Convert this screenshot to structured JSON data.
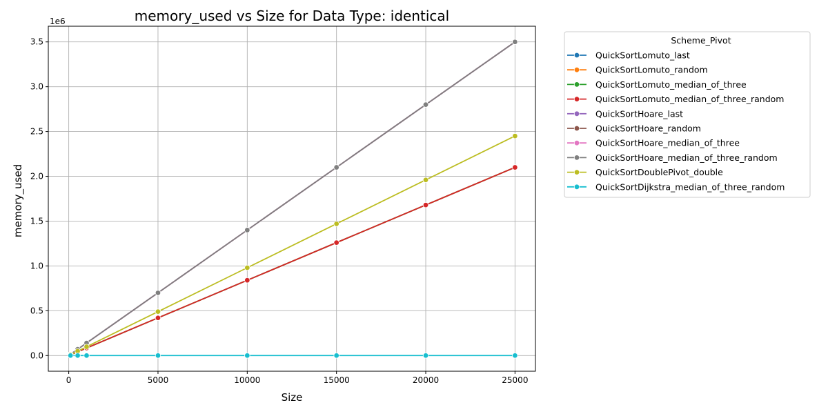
{
  "chart_data": {
    "type": "line",
    "title": "memory_used vs Size for Data Type: identical",
    "xlabel": "Size",
    "ylabel": "memory_used",
    "y_offset_label": "1e6",
    "y_scale_factor": 1000000,
    "xlim": [
      -1145,
      26145
    ],
    "ylim": [
      -175000,
      3675000
    ],
    "x_ticks": [
      0,
      5000,
      10000,
      15000,
      20000,
      25000
    ],
    "x_tick_labels": [
      "0",
      "5000",
      "10000",
      "15000",
      "20000",
      "25000"
    ],
    "y_ticks": [
      0,
      500000,
      1000000,
      1500000,
      2000000,
      2500000,
      3000000,
      3500000
    ],
    "y_tick_labels": [
      "0.0",
      "0.5",
      "1.0",
      "1.5",
      "2.0",
      "2.5",
      "3.0",
      "3.5"
    ],
    "grid": true,
    "legend_title": "Scheme_Pivot",
    "legend_position": "outside right, top",
    "x": [
      100,
      500,
      1000,
      5000,
      10000,
      15000,
      20000,
      25000
    ],
    "series": [
      {
        "name": "QuickSortLomuto_last",
        "color": "#1f77b4",
        "values": [
          8400,
          42000,
          84000,
          420000,
          840000,
          1260000,
          1680000,
          2100000
        ]
      },
      {
        "name": "QuickSortLomuto_random",
        "color": "#ff7f0e",
        "values": [
          8400,
          42000,
          84000,
          420000,
          840000,
          1260000,
          1680000,
          2100000
        ]
      },
      {
        "name": "QuickSortLomuto_median_of_three",
        "color": "#2ca02c",
        "values": [
          8400,
          42000,
          84000,
          420000,
          840000,
          1260000,
          1680000,
          2100000
        ]
      },
      {
        "name": "QuickSortLomuto_median_of_three_random",
        "color": "#d62728",
        "values": [
          8400,
          42000,
          84000,
          420000,
          840000,
          1260000,
          1680000,
          2100000
        ]
      },
      {
        "name": "QuickSortHoare_last",
        "color": "#9467bd",
        "values": [
          14000,
          70000,
          140000,
          700000,
          1400000,
          2100000,
          2800000,
          3500000
        ]
      },
      {
        "name": "QuickSortHoare_random",
        "color": "#8c564b",
        "values": [
          14000,
          70000,
          140000,
          700000,
          1400000,
          2100000,
          2800000,
          3500000
        ]
      },
      {
        "name": "QuickSortHoare_median_of_three",
        "color": "#e377c2",
        "values": [
          14000,
          70000,
          140000,
          700000,
          1400000,
          2100000,
          2800000,
          3500000
        ]
      },
      {
        "name": "QuickSortHoare_median_of_three_random",
        "color": "#7f7f7f",
        "values": [
          14000,
          70000,
          140000,
          700000,
          1400000,
          2100000,
          2800000,
          3500000
        ]
      },
      {
        "name": "QuickSortDoublePivot_double",
        "color": "#bcbd22",
        "values": [
          9800,
          49000,
          98000,
          490000,
          980000,
          1470000,
          1960000,
          2450000
        ]
      },
      {
        "name": "QuickSortDijkstra_median_of_three_random",
        "color": "#17becf",
        "values": [
          0,
          0,
          0,
          0,
          0,
          0,
          0,
          0
        ]
      }
    ]
  }
}
